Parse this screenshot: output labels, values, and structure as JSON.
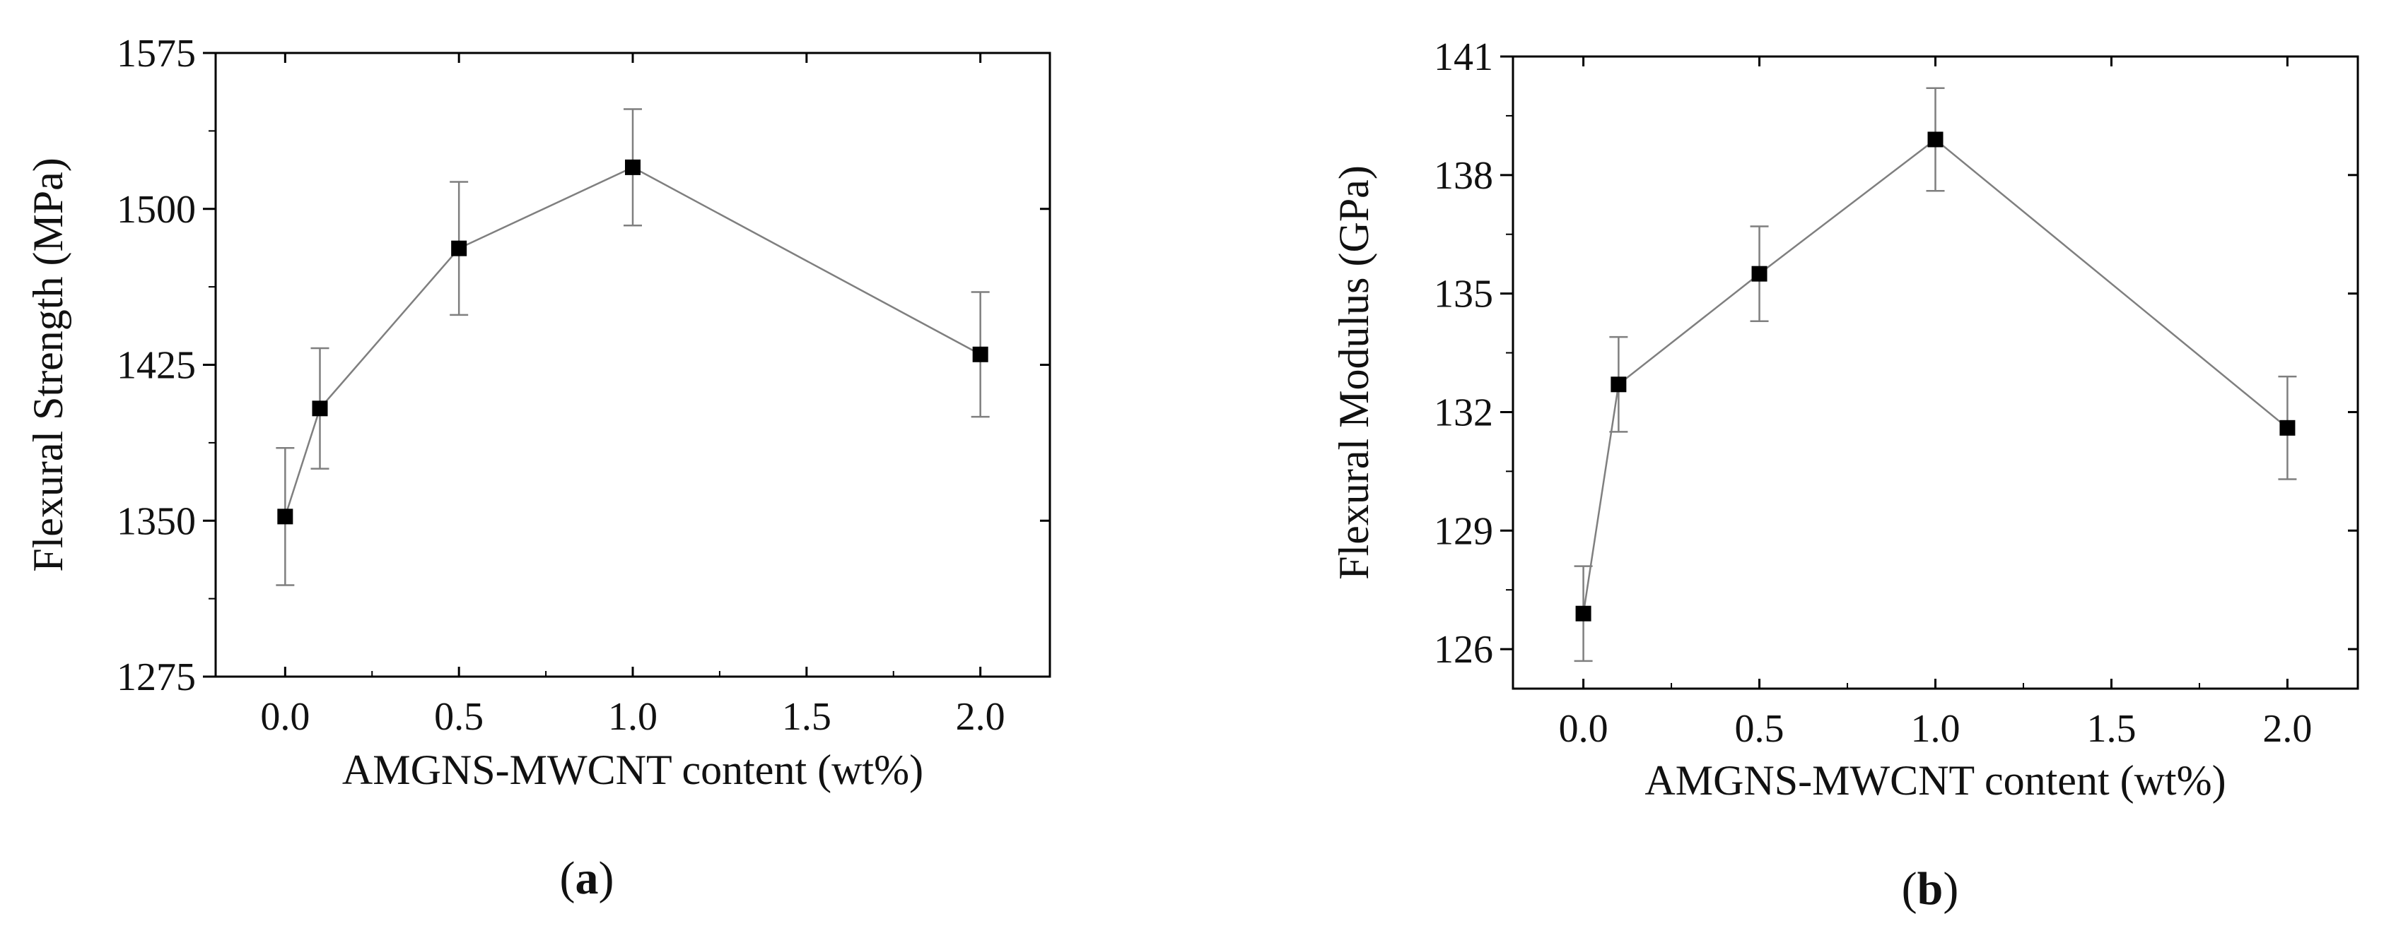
{
  "colors": {
    "line": "#7f7f7f",
    "marker": "#000000",
    "axis": "#000000",
    "error_bar": "#7f7f7f"
  },
  "chart_data": [
    {
      "type": "line",
      "caption_letter": "a",
      "xlabel": "AMGNS-MWCNT content (wt%)",
      "ylabel": "Flexural Strength (MPa)",
      "xlim": [
        -0.2,
        2.2
      ],
      "ylim": [
        1275,
        1575
      ],
      "xticks": [
        "0.0",
        "0.5",
        "1.0",
        "1.5",
        "2.0"
      ],
      "yticks": [
        "1275",
        "1350",
        "1425",
        "1500",
        "1575"
      ],
      "grid": false,
      "series": [
        {
          "x": [
            0.0,
            0.1,
            0.5,
            1.0,
            2.0
          ],
          "y": [
            1352,
            1404,
            1481,
            1520,
            1430
          ],
          "error": [
            33,
            29,
            32,
            28,
            30
          ]
        }
      ]
    },
    {
      "type": "line",
      "caption_letter": "b",
      "xlabel": "AMGNS-MWCNT content (wt%)",
      "ylabel": "Flexural Modulus (GPa)",
      "xlim": [
        -0.2,
        2.2
      ],
      "ylim": [
        125,
        141
      ],
      "xticks": [
        "0.0",
        "0.5",
        "1.0",
        "1.5",
        "2.0"
      ],
      "yticks": [
        "126",
        "129",
        "132",
        "135",
        "138",
        "141"
      ],
      "grid": false,
      "series": [
        {
          "x": [
            0.0,
            0.1,
            0.5,
            1.0,
            2.0
          ],
          "y": [
            126.9,
            132.7,
            135.5,
            138.9,
            131.6
          ],
          "error": [
            1.2,
            1.2,
            1.2,
            1.3,
            1.3
          ]
        }
      ]
    }
  ]
}
